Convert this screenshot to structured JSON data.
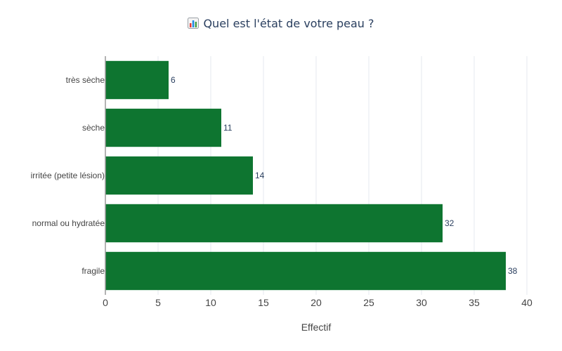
{
  "chart_data": {
    "type": "bar",
    "orientation": "horizontal",
    "title": "Quel est l'état de votre peau ?",
    "title_icon": "bar-chart-icon",
    "xlabel": "Effectif",
    "ylabel": "",
    "categories": [
      "très sèche",
      "sèche",
      "irritée (petite lésion)",
      "normal ou hydratée",
      "fragile"
    ],
    "values": [
      6,
      11,
      14,
      32,
      38
    ],
    "xlim": [
      0,
      40
    ],
    "xticks": [
      0,
      5,
      10,
      15,
      20,
      25,
      30,
      35,
      40
    ],
    "grid": true,
    "legend": "none",
    "bar_color": "#0e7530",
    "data_labels": true
  }
}
